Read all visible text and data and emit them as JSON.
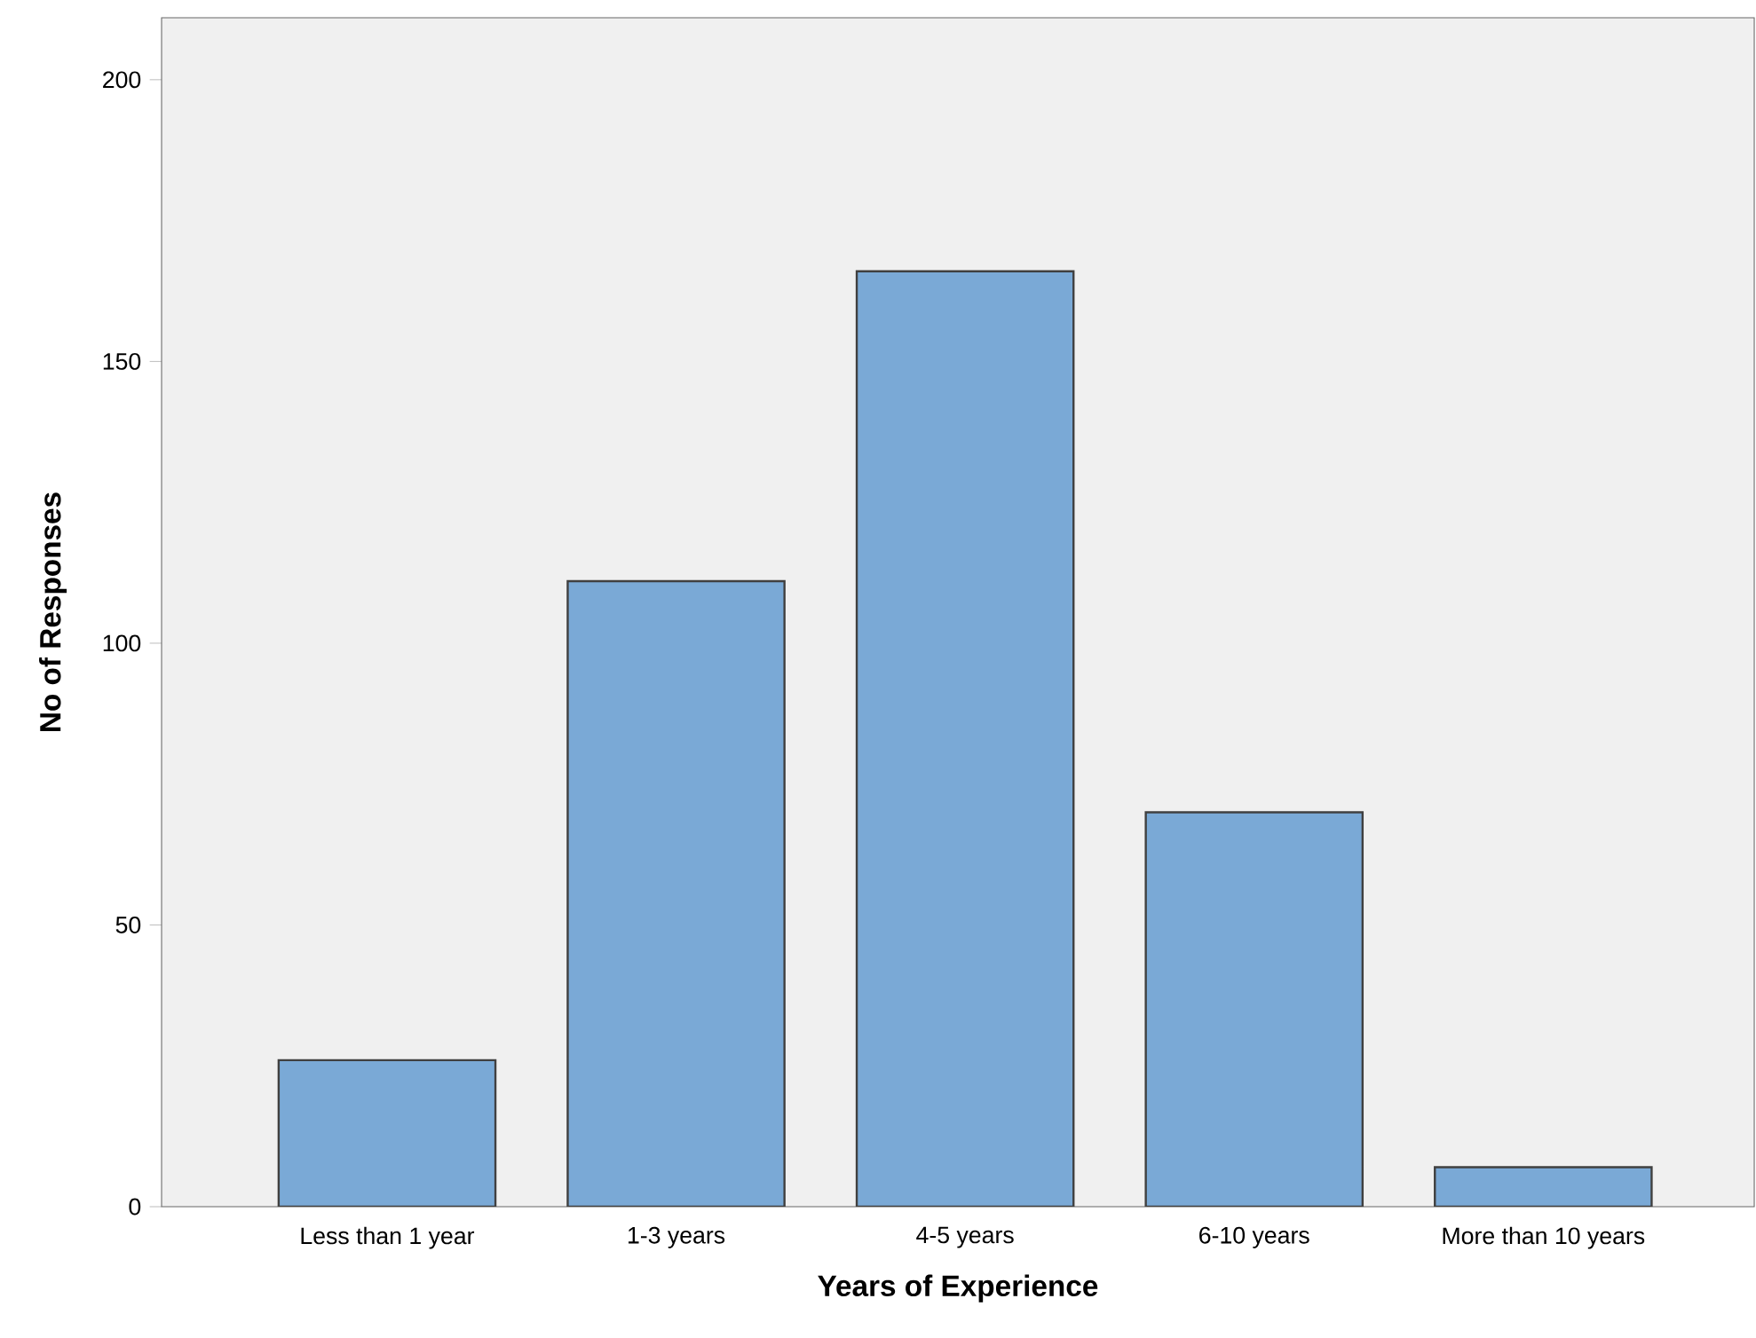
{
  "chart_data": {
    "type": "bar",
    "xlabel": "Years of Experience",
    "ylabel": "No of Responses",
    "categories": [
      "Less than 1 year",
      "1-3 years",
      "4-5 years",
      "6-10 years",
      "More than 10 years"
    ],
    "values": [
      26,
      111,
      166,
      70,
      7
    ],
    "color": "#7aa9d6",
    "ylim": [
      0,
      211
    ],
    "yticks": [
      0,
      50,
      100,
      150,
      200
    ],
    "grid": false
  }
}
